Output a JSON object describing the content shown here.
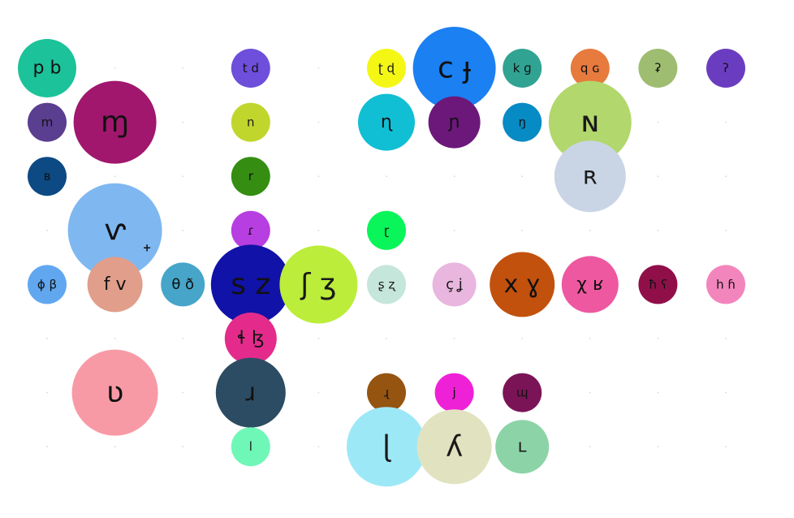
{
  "chart_data": {
    "type": "bubble",
    "title": "",
    "grid": "dotted",
    "columns": 11,
    "rows": 8,
    "bubbles": [
      {
        "label": "p b",
        "col": 0,
        "row": 0,
        "size": 36,
        "color": "#1cc29a"
      },
      {
        "label": "m",
        "col": 0,
        "row": 1,
        "size": 24,
        "color": "#5a3e90"
      },
      {
        "label": "ɱ",
        "col": 1,
        "row": 1,
        "size": 51,
        "color": "#a0176d"
      },
      {
        "label": "ʙ",
        "col": 0,
        "row": 2,
        "size": 24,
        "color": "#0d4a84"
      },
      {
        "label": "ⱱ",
        "col": 1,
        "row": 3,
        "size": 58,
        "color": "#7fb8f1",
        "mark": "+"
      },
      {
        "label": "ɸ β",
        "col": 0,
        "row": 4,
        "size": 24,
        "color": "#61a7f0"
      },
      {
        "label": "f v",
        "col": 1,
        "row": 4,
        "size": 34,
        "color": "#e09e8b"
      },
      {
        "label": "ʋ",
        "col": 1,
        "row": 6,
        "size": 53,
        "color": "#f89aa6"
      },
      {
        "label": "θ ð",
        "col": 2,
        "row": 4,
        "size": 27,
        "color": "#46a5c8"
      },
      {
        "label": "t d",
        "col": 3,
        "row": 0,
        "size": 24,
        "color": "#6e4fdb"
      },
      {
        "label": "n",
        "col": 3,
        "row": 1,
        "size": 24,
        "color": "#c0d62d"
      },
      {
        "label": "r",
        "col": 3,
        "row": 2,
        "size": 24,
        "color": "#358e12"
      },
      {
        "label": "ɾ",
        "col": 3,
        "row": 3,
        "size": 24,
        "color": "#b73ee0"
      },
      {
        "label": "s z",
        "col": 3,
        "row": 4,
        "size": 49,
        "color": "#1112a8"
      },
      {
        "label": "ɬ ɮ",
        "col": 3,
        "row": 5,
        "size": 32,
        "color": "#e42b8c"
      },
      {
        "label": "ɹ",
        "col": 3,
        "row": 6,
        "size": 43,
        "color": "#2c4c63"
      },
      {
        "label": "l",
        "col": 3,
        "row": 7,
        "size": 24,
        "color": "#6ff7b7"
      },
      {
        "label": "ʃ ʒ",
        "col": 4,
        "row": 4,
        "size": 48,
        "color": "#bbed3a"
      },
      {
        "label": "ʈ ɖ",
        "col": 5,
        "row": 0,
        "size": 24,
        "color": "#f4f714"
      },
      {
        "label": "ɳ",
        "col": 5,
        "row": 1,
        "size": 35,
        "color": "#11bfd4"
      },
      {
        "label": "ɽ",
        "col": 5,
        "row": 3,
        "size": 24,
        "color": "#09f55a"
      },
      {
        "label": "ʂ ʐ",
        "col": 5,
        "row": 4,
        "size": 24,
        "color": "#c5e6da"
      },
      {
        "label": "ɻ",
        "col": 5,
        "row": 6,
        "size": 24,
        "color": "#955410"
      },
      {
        "label": "ɭ",
        "col": 5,
        "row": 7,
        "size": 49,
        "color": "#9de8f6"
      },
      {
        "label": "c ɟ",
        "col": 6,
        "row": 0,
        "size": 51,
        "color": "#1b80f1"
      },
      {
        "label": "ɲ",
        "col": 6,
        "row": 1,
        "size": 32,
        "color": "#6c187a"
      },
      {
        "label": "ç ʝ",
        "col": 6,
        "row": 4,
        "size": 27,
        "color": "#e8b6df"
      },
      {
        "label": "j",
        "col": 6,
        "row": 6,
        "size": 24,
        "color": "#ef21d7"
      },
      {
        "label": "ʎ",
        "col": 6,
        "row": 7,
        "size": 46,
        "color": "#e1e3c0"
      },
      {
        "label": "k ɡ",
        "col": 7,
        "row": 0,
        "size": 24,
        "color": "#31a392"
      },
      {
        "label": "ŋ",
        "col": 7,
        "row": 1,
        "size": 24,
        "color": "#068bc4"
      },
      {
        "label": "x ɣ",
        "col": 7,
        "row": 4,
        "size": 40,
        "color": "#c2510d"
      },
      {
        "label": "ɰ",
        "col": 7,
        "row": 6,
        "size": 24,
        "color": "#7b1357"
      },
      {
        "label": "ʟ",
        "col": 7,
        "row": 7,
        "size": 33,
        "color": "#8cd4a7"
      },
      {
        "label": "q ɢ",
        "col": 8,
        "row": 0,
        "size": 24,
        "color": "#e77b3d"
      },
      {
        "label": "ɴ",
        "col": 8,
        "row": 1,
        "size": 51,
        "color": "#b2d76c"
      },
      {
        "label": "ʀ",
        "col": 8,
        "row": 2,
        "size": 44,
        "color": "#c9d5e5"
      },
      {
        "label": "χ ʁ",
        "col": 8,
        "row": 4,
        "size": 35,
        "color": "#ee58a0"
      },
      {
        "label": "ʡ",
        "col": 9,
        "row": 0,
        "size": 24,
        "color": "#9ebd71"
      },
      {
        "label": "ħ ʕ",
        "col": 9,
        "row": 4,
        "size": 24,
        "color": "#900f49"
      },
      {
        "label": "ʔ",
        "col": 10,
        "row": 0,
        "size": 24,
        "color": "#6a3dc0"
      },
      {
        "label": "h ɦ",
        "col": 10,
        "row": 4,
        "size": 24,
        "color": "#f385bd"
      }
    ]
  }
}
